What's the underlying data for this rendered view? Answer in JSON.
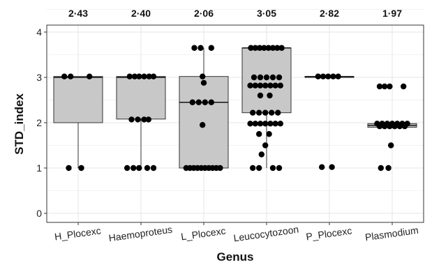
{
  "chart_data": {
    "type": "box",
    "xlabel": "Genus",
    "ylabel": "STD_index",
    "ylim": [
      0,
      4
    ],
    "yticks": [
      0,
      1,
      2,
      3,
      4
    ],
    "grid": true,
    "legend": "none",
    "colors": {
      "box_fill": "#c8c8c8",
      "point": "#000000",
      "grid": "#e6e6e6"
    },
    "categories": [
      "H_Plocexc",
      "Haemoproteus",
      "L_Plocexc",
      "Leucocytozoon",
      "P_Plocexc",
      "Plasmodium"
    ],
    "annotations": [
      "2·43",
      "2·40",
      "2·06",
      "3·05",
      "2·82",
      "1·97"
    ],
    "boxes": [
      {
        "q1": 2.0,
        "median": 3.0,
        "q3": 3.02,
        "whisker_low": 1.0,
        "whisker_high": 3.02
      },
      {
        "q1": 2.08,
        "median": 3.0,
        "q3": 3.02,
        "whisker_low": 1.0,
        "whisker_high": 3.02
      },
      {
        "q1": 1.0,
        "median": 2.45,
        "q3": 3.02,
        "whisker_low": 1.0,
        "whisker_high": 3.65
      },
      {
        "q1": 2.22,
        "median": 3.65,
        "q3": 3.65,
        "whisker_low": 1.0,
        "whisker_high": 3.65
      },
      {
        "q1": 3.02,
        "median": 3.02,
        "q3": 3.02,
        "whisker_low": 3.02,
        "whisker_high": 3.02
      },
      {
        "q1": 1.9,
        "median": 1.94,
        "q3": 1.98,
        "whisker_low": 1.9,
        "whisker_high": 1.98
      }
    ],
    "points": [
      [
        {
          "y": 3.02,
          "dx": -0.22
        },
        {
          "y": 3.02,
          "dx": -0.12
        },
        {
          "y": 3.02,
          "dx": 0.18
        },
        {
          "y": 1.0,
          "dx": -0.15
        },
        {
          "y": 1.0,
          "dx": 0.05
        }
      ],
      [
        {
          "y": 3.02,
          "dx": -0.18
        },
        {
          "y": 3.02,
          "dx": -0.1
        },
        {
          "y": 3.02,
          "dx": -0.03
        },
        {
          "y": 3.02,
          "dx": 0.05
        },
        {
          "y": 3.02,
          "dx": 0.13
        },
        {
          "y": 3.02,
          "dx": 0.2
        },
        {
          "y": 2.07,
          "dx": -0.15
        },
        {
          "y": 2.07,
          "dx": -0.05
        },
        {
          "y": 2.07,
          "dx": 0.05
        },
        {
          "y": 2.07,
          "dx": 0.12
        },
        {
          "y": 1.0,
          "dx": -0.22
        },
        {
          "y": 1.0,
          "dx": -0.12
        },
        {
          "y": 1.0,
          "dx": -0.03
        },
        {
          "y": 1.0,
          "dx": 0.1
        },
        {
          "y": 1.0,
          "dx": 0.2
        }
      ],
      [
        {
          "y": 3.65,
          "dx": -0.15
        },
        {
          "y": 3.65,
          "dx": -0.05
        },
        {
          "y": 3.65,
          "dx": 0.12
        },
        {
          "y": 3.02,
          "dx": -0.02
        },
        {
          "y": 2.88,
          "dx": 0.0
        },
        {
          "y": 2.45,
          "dx": -0.18
        },
        {
          "y": 2.45,
          "dx": -0.08
        },
        {
          "y": 2.45,
          "dx": 0.02
        },
        {
          "y": 2.45,
          "dx": 0.12
        },
        {
          "y": 1.95,
          "dx": -0.02
        },
        {
          "y": 1.0,
          "dx": -0.28
        },
        {
          "y": 1.0,
          "dx": -0.22
        },
        {
          "y": 1.0,
          "dx": -0.16
        },
        {
          "y": 1.0,
          "dx": -0.1
        },
        {
          "y": 1.0,
          "dx": -0.04
        },
        {
          "y": 1.0,
          "dx": 0.02
        },
        {
          "y": 1.0,
          "dx": 0.08
        },
        {
          "y": 1.0,
          "dx": 0.14
        },
        {
          "y": 1.0,
          "dx": 0.2
        },
        {
          "y": 1.0,
          "dx": 0.26
        }
      ],
      [
        {
          "y": 3.65,
          "dx": -0.25
        },
        {
          "y": 3.65,
          "dx": -0.18
        },
        {
          "y": 3.65,
          "dx": -0.11
        },
        {
          "y": 3.65,
          "dx": -0.04
        },
        {
          "y": 3.65,
          "dx": 0.03
        },
        {
          "y": 3.65,
          "dx": 0.1
        },
        {
          "y": 3.65,
          "dx": 0.17
        },
        {
          "y": 3.65,
          "dx": 0.24
        },
        {
          "y": 3.0,
          "dx": -0.2
        },
        {
          "y": 3.0,
          "dx": -0.1
        },
        {
          "y": 3.0,
          "dx": 0.0
        },
        {
          "y": 3.0,
          "dx": 0.1
        },
        {
          "y": 3.0,
          "dx": 0.2
        },
        {
          "y": 2.82,
          "dx": -0.26
        },
        {
          "y": 2.82,
          "dx": -0.18
        },
        {
          "y": 2.82,
          "dx": -0.1
        },
        {
          "y": 2.82,
          "dx": -0.02
        },
        {
          "y": 2.82,
          "dx": 0.06
        },
        {
          "y": 2.82,
          "dx": 0.14
        },
        {
          "y": 2.82,
          "dx": 0.22
        },
        {
          "y": 2.6,
          "dx": -0.1
        },
        {
          "y": 2.6,
          "dx": 0.05
        },
        {
          "y": 2.22,
          "dx": -0.22
        },
        {
          "y": 2.22,
          "dx": -0.12
        },
        {
          "y": 2.22,
          "dx": -0.02
        },
        {
          "y": 2.22,
          "dx": 0.08
        },
        {
          "y": 2.22,
          "dx": 0.18
        },
        {
          "y": 1.98,
          "dx": -0.26
        },
        {
          "y": 1.98,
          "dx": -0.18
        },
        {
          "y": 1.98,
          "dx": -0.1
        },
        {
          "y": 1.98,
          "dx": -0.02
        },
        {
          "y": 1.98,
          "dx": 0.06
        },
        {
          "y": 1.98,
          "dx": 0.14
        },
        {
          "y": 1.98,
          "dx": 0.22
        },
        {
          "y": 1.75,
          "dx": -0.12
        },
        {
          "y": 1.75,
          "dx": 0.04
        },
        {
          "y": 1.5,
          "dx": -0.02
        },
        {
          "y": 1.3,
          "dx": -0.08
        },
        {
          "y": 1.0,
          "dx": -0.22
        },
        {
          "y": 1.0,
          "dx": -0.12
        },
        {
          "y": 1.0,
          "dx": 0.1
        },
        {
          "y": 1.0,
          "dx": 0.2
        }
      ],
      [
        {
          "y": 3.02,
          "dx": -0.18
        },
        {
          "y": 3.02,
          "dx": -0.1
        },
        {
          "y": 3.02,
          "dx": -0.02
        },
        {
          "y": 3.02,
          "dx": 0.06
        },
        {
          "y": 3.02,
          "dx": 0.14
        },
        {
          "y": 1.02,
          "dx": -0.12
        },
        {
          "y": 1.02,
          "dx": 0.04
        }
      ],
      [
        {
          "y": 2.8,
          "dx": -0.2
        },
        {
          "y": 2.8,
          "dx": -0.12
        },
        {
          "y": 2.8,
          "dx": -0.04
        },
        {
          "y": 2.8,
          "dx": 0.18
        },
        {
          "y": 1.98,
          "dx": -0.24
        },
        {
          "y": 1.98,
          "dx": -0.16
        },
        {
          "y": 1.98,
          "dx": -0.08
        },
        {
          "y": 1.98,
          "dx": 0.0
        },
        {
          "y": 1.98,
          "dx": 0.08
        },
        {
          "y": 1.98,
          "dx": 0.16
        },
        {
          "y": 1.98,
          "dx": 0.24
        },
        {
          "y": 1.92,
          "dx": -0.2
        },
        {
          "y": 1.92,
          "dx": -0.12
        },
        {
          "y": 1.92,
          "dx": -0.04
        },
        {
          "y": 1.92,
          "dx": 0.04
        },
        {
          "y": 1.92,
          "dx": 0.12
        },
        {
          "y": 1.92,
          "dx": 0.2
        },
        {
          "y": 1.5,
          "dx": -0.02
        },
        {
          "y": 1.0,
          "dx": -0.18
        },
        {
          "y": 1.0,
          "dx": -0.06
        }
      ]
    ]
  }
}
